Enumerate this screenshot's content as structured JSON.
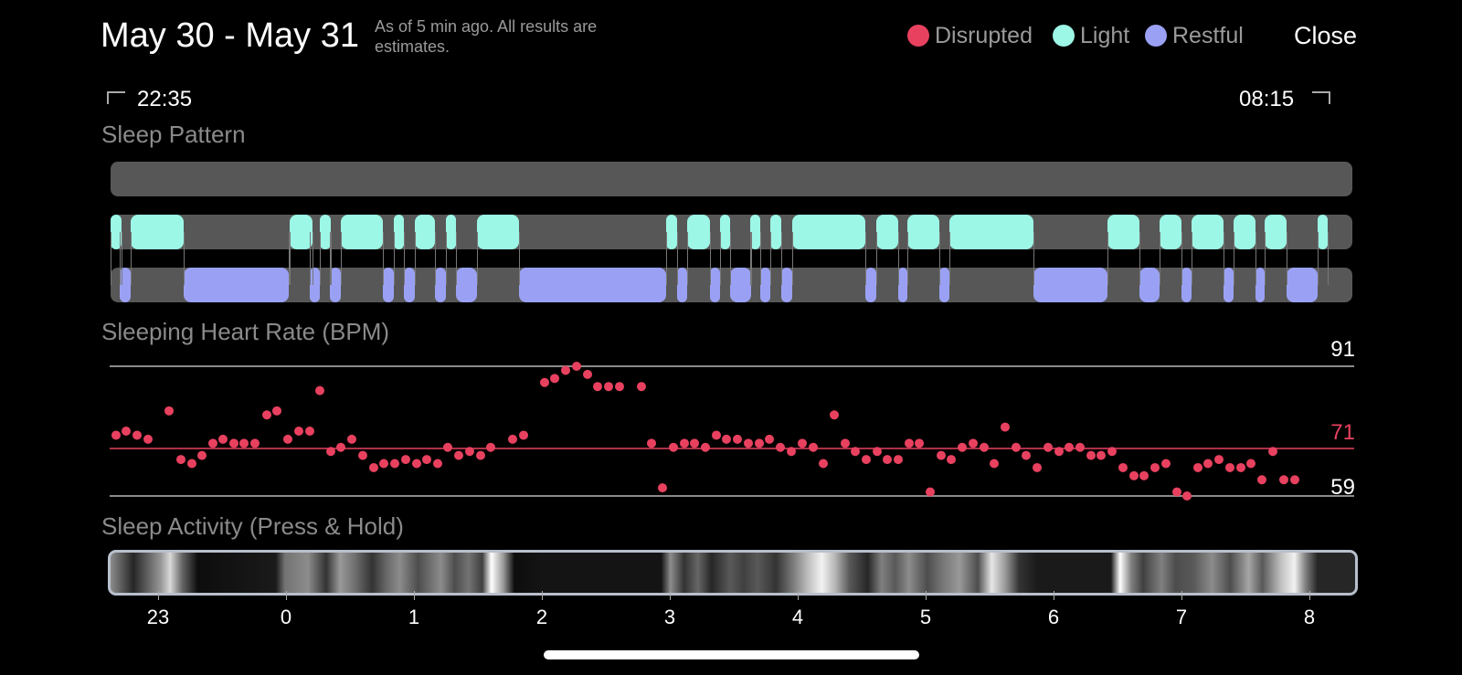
{
  "header": {
    "title": "May 30 - May 31",
    "subtitle": "As of 5 min ago. All results are estimates.",
    "legend": [
      {
        "label": "Disrupted",
        "color": "#e8415f"
      },
      {
        "label": "Light",
        "color": "#9cf7e6"
      },
      {
        "label": "Restful",
        "color": "#9aa1f4"
      }
    ],
    "close_label": "Close"
  },
  "range": {
    "start": "22:35",
    "end": "08:15"
  },
  "sections": {
    "sleep_pattern": "Sleep Pattern",
    "heart_rate": "Sleeping Heart Rate (BPM)",
    "activity": "Sleep Activity (Press & Hold)"
  },
  "chart_data": {
    "type": "scatter",
    "title": "Sleeping Heart Rate (BPM)",
    "yrange": [
      59,
      91
    ],
    "reference": {
      "max": 91,
      "avg": 71,
      "min": 59
    },
    "reference_labels": {
      "max": "91",
      "avg": "71",
      "min": "59"
    },
    "x_ticks": [
      "23",
      "0",
      "1",
      "2",
      "3",
      "4",
      "5",
      "6",
      "7",
      "8"
    ],
    "x_range_hours": [
      22.62,
      8.07
    ],
    "y": [
      74,
      75,
      74,
      73,
      80,
      68,
      67,
      69,
      72,
      73,
      72,
      72,
      72,
      79,
      80,
      73,
      75,
      75,
      85,
      70,
      71,
      73,
      69,
      66,
      67,
      67,
      68,
      67,
      68,
      67,
      71,
      69,
      70,
      69,
      71,
      73,
      74,
      87,
      88,
      90,
      91,
      89,
      86,
      86,
      86,
      86,
      72,
      61,
      71,
      72,
      72,
      71,
      74,
      73,
      73,
      72,
      72,
      73,
      71,
      70,
      72,
      71,
      67,
      79,
      72,
      70,
      68,
      70,
      68,
      68,
      72,
      72,
      60,
      69,
      68,
      71,
      72,
      71,
      67,
      76,
      71,
      69,
      66,
      71,
      70,
      71,
      71,
      69,
      69,
      70,
      66,
      64,
      64,
      66,
      67,
      60,
      59,
      66,
      67,
      68,
      66,
      66,
      67,
      63,
      70,
      63,
      63
    ]
  }
}
